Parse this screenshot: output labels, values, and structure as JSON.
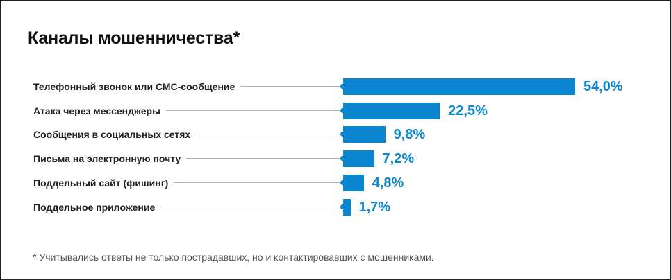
{
  "chart_data": {
    "type": "bar",
    "orientation": "horizontal",
    "title": "Каналы мошенничества*",
    "categories": [
      "Телефонный звонок или СМС-сообщение",
      "Атака через мессенджеры",
      "Сообщения в социальных сетях",
      "Письма на электронную почту",
      "Поддельный сайт (фишинг)",
      "Поддельное приложение"
    ],
    "values": [
      54.0,
      22.5,
      9.8,
      7.2,
      4.8,
      1.7
    ],
    "value_labels": [
      "54,0%",
      "22,5%",
      "9,8%",
      "7,2%",
      "4,8%",
      "1,7%"
    ],
    "xlim": [
      0,
      54
    ],
    "grid": false,
    "bar_color": "#0a86d0",
    "footnote": "* Учитывались ответы не только пострадавших, но и контактировавших с мошенниками."
  }
}
